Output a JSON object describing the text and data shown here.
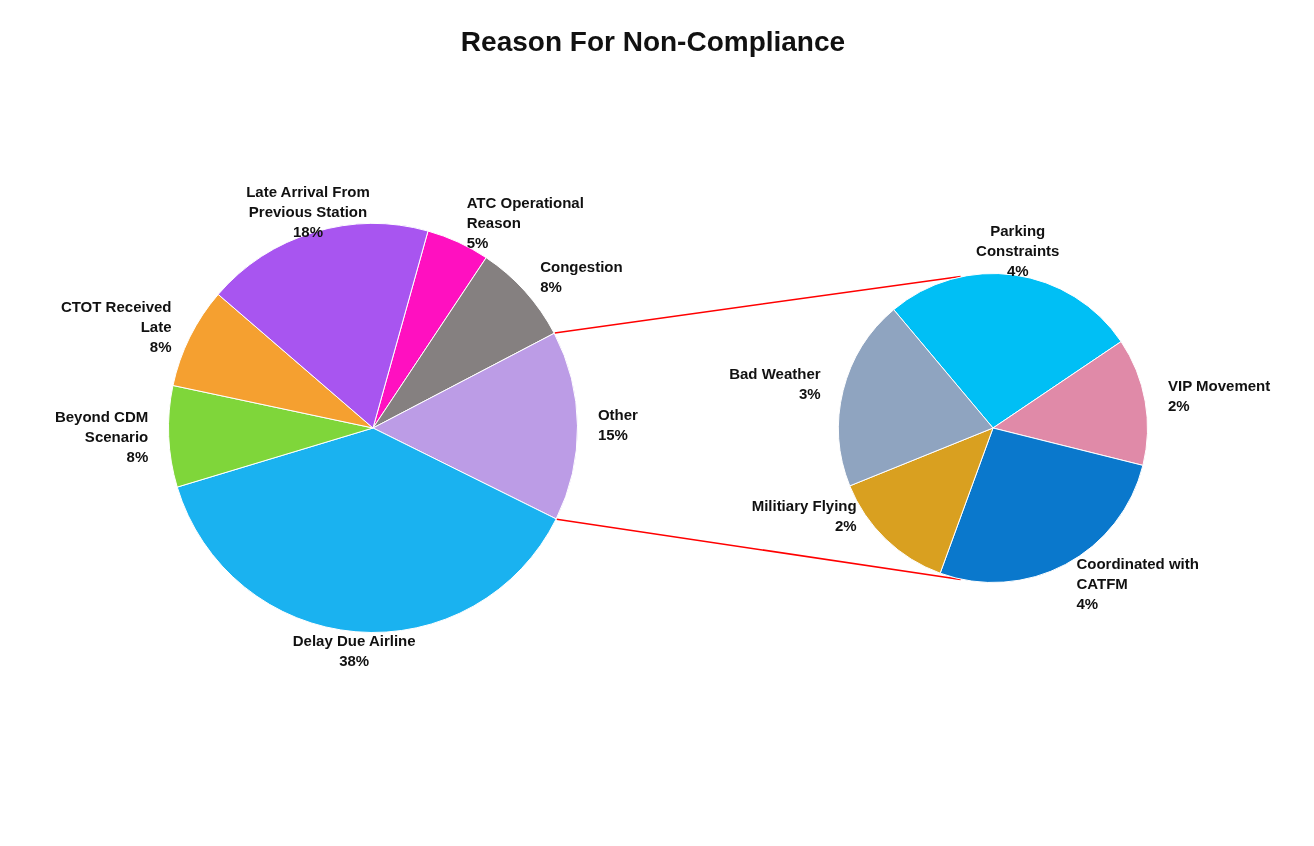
{
  "chart_data": [
    {
      "type": "pie",
      "title": "Reason For Non-Compliance",
      "categories": [
        "ATC Operational Reason",
        "Congestion",
        "Other",
        "Delay Due Airline",
        "Beyond CDM Scenario",
        "CTOT Received Late",
        "Late Arrival From Previous Station"
      ],
      "values": [
        5,
        8,
        15,
        38,
        8,
        8,
        18
      ],
      "colors": [
        "#ff10c0",
        "#858080",
        "#bc9ce6",
        "#1ab2f0",
        "#7fd63a",
        "#f5a030",
        "#a855f0"
      ],
      "value_labels": [
        "5%",
        "8%",
        "15%",
        "38%",
        "8%",
        "8%",
        "18%"
      ],
      "legend": false
    },
    {
      "type": "pie",
      "categories": [
        "Parking Constraints",
        "VIP Movement",
        "Coordinated with CATFM",
        "Militiary Flying",
        "Bad Weather"
      ],
      "values": [
        4,
        2,
        4,
        2,
        3
      ],
      "colors": [
        "#00bff5",
        "#e08aa8",
        "#0a78cc",
        "#d9a020",
        "#8fa4c0"
      ],
      "value_labels": [
        "4%",
        "2%",
        "4%",
        "2%",
        "3%"
      ],
      "legend": false
    }
  ]
}
